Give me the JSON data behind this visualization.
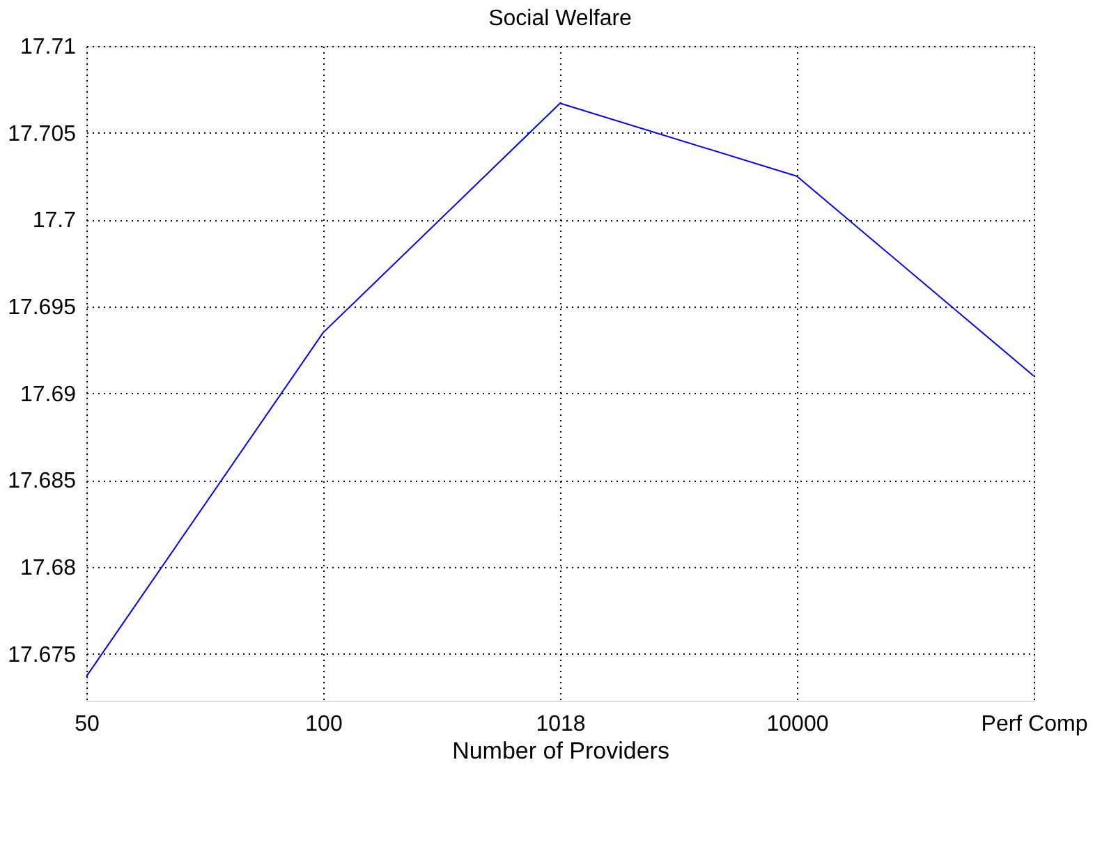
{
  "chart_data": {
    "type": "line",
    "title": "Social Welfare",
    "xlabel": "Number of Providers",
    "categories": [
      "50",
      "100",
      "1018",
      "10000",
      "Perf Comp"
    ],
    "series": [
      {
        "color": "#0000ff",
        "values": [
          17.6737,
          17.6935,
          17.7067,
          17.7025,
          17.691
        ]
      }
    ],
    "ylim": [
      17.6723,
      17.71
    ],
    "yticks": [
      17.675,
      17.68,
      17.685,
      17.69,
      17.695,
      17.7,
      17.705,
      17.71
    ],
    "grid": true,
    "marker": "none",
    "line_style": "solid"
  }
}
